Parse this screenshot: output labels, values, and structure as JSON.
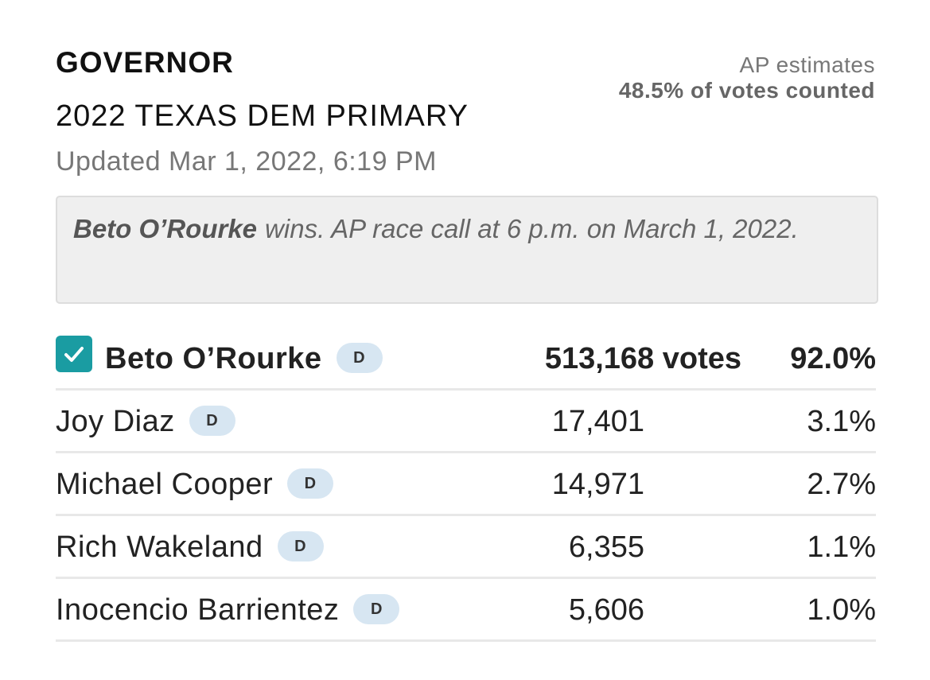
{
  "header": {
    "title": "GOVERNOR",
    "race": "2022 TEXAS DEM PRIMARY",
    "updated": "Updated Mar 1, 2022, 6:19 PM"
  },
  "status": {
    "source": "AP estimates",
    "counted": "48.5% of votes counted"
  },
  "callout": {
    "winner": "Beto O’Rourke",
    "text": "wins. AP race call at 6 p.m. on March 1, 2022."
  },
  "candidates": [
    {
      "name": "Beto O’Rourke",
      "party": "D",
      "votes": "513,168 votes",
      "percent": "92.0%",
      "winner": true
    },
    {
      "name": "Joy Diaz",
      "party": "D",
      "votes": "17,401",
      "percent": "3.1%",
      "winner": false
    },
    {
      "name": "Michael Cooper",
      "party": "D",
      "votes": "14,971",
      "percent": "2.7%",
      "winner": false
    },
    {
      "name": "Rich Wakeland",
      "party": "D",
      "votes": "6,355",
      "percent": "1.1%",
      "winner": false
    },
    {
      "name": "Inocencio Barrientez",
      "party": "D",
      "votes": "5,606",
      "percent": "1.0%",
      "winner": false
    }
  ]
}
